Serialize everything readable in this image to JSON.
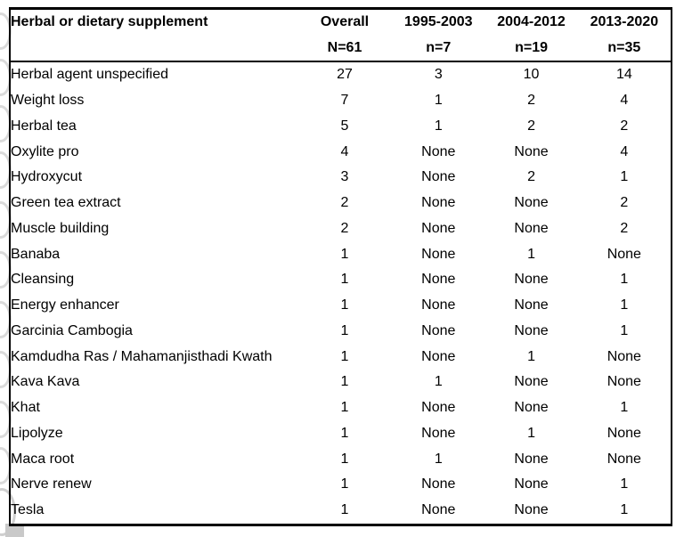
{
  "table": {
    "header": {
      "title": "Herbal or dietary supplement",
      "columns": [
        {
          "label": "Overall",
          "sub": "N=61"
        },
        {
          "label": "1995-2003",
          "sub": "n=7"
        },
        {
          "label": "2004-2012",
          "sub": "n=19"
        },
        {
          "label": "2013-2020",
          "sub": "n=35"
        }
      ]
    },
    "rows": [
      {
        "name": "Herbal agent unspecified",
        "values": [
          "27",
          "3",
          "10",
          "14"
        ]
      },
      {
        "name": "Weight loss",
        "values": [
          "7",
          "1",
          "2",
          "4"
        ]
      },
      {
        "name": "Herbal tea",
        "values": [
          "5",
          "1",
          "2",
          "2"
        ]
      },
      {
        "name": "Oxylite pro",
        "values": [
          "4",
          "None",
          "None",
          "4"
        ]
      },
      {
        "name": "Hydroxycut",
        "values": [
          "3",
          "None",
          "2",
          "1"
        ]
      },
      {
        "name": "Green tea extract",
        "values": [
          "2",
          "None",
          "None",
          "2"
        ]
      },
      {
        "name": "Muscle building",
        "values": [
          "2",
          "None",
          "None",
          "2"
        ]
      },
      {
        "name": "Banaba",
        "values": [
          "1",
          "None",
          "1",
          "None"
        ]
      },
      {
        "name": "Cleansing",
        "values": [
          "1",
          "None",
          "None",
          "1"
        ]
      },
      {
        "name": "Energy enhancer",
        "values": [
          "1",
          "None",
          "None",
          "1"
        ]
      },
      {
        "name": "Garcinia Cambogia",
        "values": [
          "1",
          "None",
          "None",
          "1"
        ]
      },
      {
        "name": "Kamdudha Ras / Mahamanjisthadi Kwath",
        "values": [
          "1",
          "None",
          "1",
          "None"
        ]
      },
      {
        "name": "Kava Kava",
        "values": [
          "1",
          "1",
          "None",
          "None"
        ]
      },
      {
        "name": "Khat",
        "values": [
          "1",
          "None",
          "None",
          "1"
        ]
      },
      {
        "name": "Lipolyze",
        "values": [
          "1",
          "None",
          "1",
          "None"
        ]
      },
      {
        "name": "Maca root",
        "values": [
          "1",
          "1",
          "None",
          "None"
        ]
      },
      {
        "name": "Nerve renew",
        "values": [
          "1",
          "None",
          "None",
          "1"
        ]
      },
      {
        "name": "Tesla",
        "values": [
          "1",
          "None",
          "None",
          "1"
        ]
      }
    ]
  },
  "colors": {
    "text": "#000000",
    "table_border": "#000000",
    "background": "#ffffff",
    "watermark_arc": "#dadada",
    "watermark_block": "#c9c9c9"
  }
}
